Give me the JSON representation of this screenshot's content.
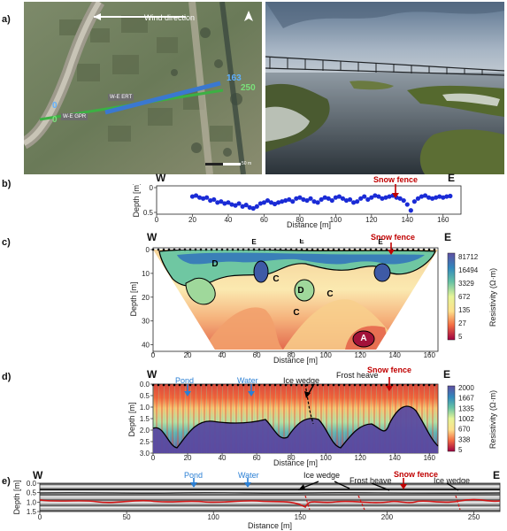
{
  "panel_labels": {
    "a": "a)",
    "b": "b)",
    "c": "c)",
    "d": "d)",
    "e": "e)"
  },
  "directions": {
    "w": "W",
    "e": "E"
  },
  "panel_a": {
    "wind_label": "Wind direction",
    "ert_label": "W-E ERT",
    "gpr_label": "W-E GPR",
    "ert_start": "0",
    "ert_end": "163",
    "gpr_start": "0",
    "gpr_end": "250",
    "scale_label": "50 m",
    "north_icon": "north-arrow-icon",
    "map_image": "satellite-image",
    "photo_image": "snow-fence-photo"
  },
  "annotations": {
    "snow_fence": "Snow fence",
    "pond": "Pond",
    "water": "Water",
    "ice_wedge": "Ice wedge",
    "frost_heave": "Frost heave"
  },
  "colors": {
    "annotation_red": "#c00000",
    "annotation_blue": "#2a7fd4",
    "points": "#1a2bd6"
  },
  "chart_data": [
    {
      "panel": "b",
      "type": "scatter",
      "xlabel": "Distance [m]",
      "ylabel": "Depth [m]",
      "xlim": [
        0,
        170
      ],
      "ylim": [
        0.5,
        0
      ],
      "xticks": [
        0,
        20,
        40,
        60,
        80,
        100,
        120,
        140,
        160
      ],
      "yticks": [
        0,
        0.5
      ],
      "x": [
        20,
        22,
        24,
        26,
        28,
        30,
        32,
        34,
        36,
        38,
        40,
        42,
        44,
        46,
        48,
        50,
        52,
        54,
        56,
        58,
        60,
        62,
        64,
        66,
        68,
        70,
        72,
        74,
        76,
        78,
        80,
        82,
        84,
        86,
        88,
        90,
        92,
        94,
        96,
        98,
        100,
        102,
        104,
        106,
        108,
        110,
        112,
        114,
        116,
        118,
        120,
        122,
        124,
        126,
        128,
        130,
        132,
        134,
        136,
        138,
        140,
        142,
        144,
        146,
        148,
        150,
        152,
        154,
        156,
        158,
        160,
        162,
        164
      ],
      "y": [
        0.18,
        0.16,
        0.2,
        0.22,
        0.2,
        0.26,
        0.24,
        0.3,
        0.28,
        0.32,
        0.3,
        0.34,
        0.36,
        0.32,
        0.38,
        0.35,
        0.4,
        0.42,
        0.38,
        0.32,
        0.3,
        0.26,
        0.3,
        0.33,
        0.3,
        0.28,
        0.26,
        0.24,
        0.28,
        0.22,
        0.2,
        0.24,
        0.26,
        0.22,
        0.28,
        0.3,
        0.24,
        0.2,
        0.22,
        0.26,
        0.2,
        0.18,
        0.22,
        0.26,
        0.24,
        0.3,
        0.28,
        0.22,
        0.18,
        0.24,
        0.2,
        0.16,
        0.18,
        0.22,
        0.2,
        0.18,
        0.16,
        0.2,
        0.22,
        0.26,
        0.34,
        0.46,
        0.28,
        0.22,
        0.18,
        0.16,
        0.2,
        0.22,
        0.2,
        0.18,
        0.2,
        0.18,
        0.17
      ]
    },
    {
      "panel": "c",
      "type": "heatmap",
      "xlabel": "Distance [m]",
      "ylabel": "Depth [m]",
      "xlim": [
        0,
        165
      ],
      "ylim": [
        42,
        0
      ],
      "xticks": [
        0,
        20,
        40,
        60,
        80,
        100,
        120,
        140,
        160
      ],
      "yticks": [
        0,
        10,
        20,
        30,
        40
      ],
      "colorbar_label": "Resistivity (Ω·m)",
      "colorbar_ticks": [
        "81712",
        "16494",
        "3329",
        "672",
        "135",
        "27",
        "5"
      ],
      "zone_labels": [
        "E",
        "E",
        "E",
        "D",
        "D",
        "C",
        "C",
        "C",
        "A"
      ]
    },
    {
      "panel": "d",
      "type": "heatmap",
      "xlabel": "Distance [m]",
      "ylabel": "Depth [m]",
      "xlim": [
        0,
        165
      ],
      "ylim": [
        3.0,
        0
      ],
      "xticks": [
        0,
        20,
        40,
        60,
        80,
        100,
        120,
        140,
        160
      ],
      "yticks": [
        "0.0",
        "0.5",
        "1.0",
        "1.5",
        "2.0",
        "2.5",
        "3.0"
      ],
      "colorbar_label": "Resistivity (Ω·m)",
      "colorbar_ticks": [
        "2000",
        "1667",
        "1335",
        "1002",
        "670",
        "338",
        "5"
      ]
    },
    {
      "panel": "e",
      "type": "line",
      "xlabel": "Distance [m]",
      "ylabel": "Depth [m]",
      "xlim": [
        0,
        265
      ],
      "ylim": [
        1.5,
        0
      ],
      "xticks": [
        0,
        50,
        100,
        150,
        200,
        250
      ],
      "yticks": [
        "0.0",
        "0.5",
        "1.0",
        "1.5"
      ]
    }
  ]
}
